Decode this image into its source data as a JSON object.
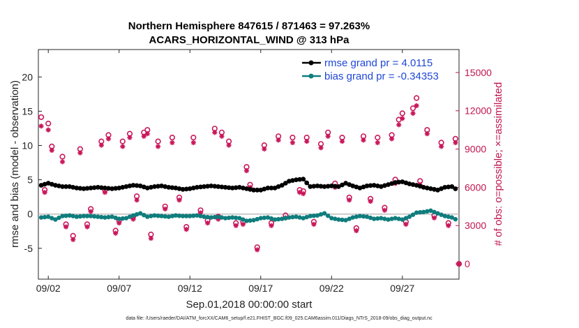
{
  "chart_data": {
    "type": "line",
    "title_line1": "Northern Hemisphere 847615 / 871463 = 97.263%",
    "title_line2": "ACARS_HORIZONTAL_WIND @ 313 hPa",
    "xlabel": "Sep.01,2018 00:00:00 start",
    "ylabel_left": "rmse and bias (model - observation)",
    "ylabel_right": "# of obs: o=possible; ×=assimilated",
    "x_tick_labels": [
      "09/02",
      "09/07",
      "09/12",
      "09/17",
      "09/22",
      "09/27"
    ],
    "x_tick_days": [
      2,
      7,
      12,
      17,
      22,
      27
    ],
    "xlim_days": [
      1.3,
      31.0
    ],
    "ylim_left": [
      -9.5,
      24
    ],
    "ylim_right": [
      -1200,
      16800
    ],
    "y_ticks_left": [
      "-5",
      "0",
      "5",
      "10",
      "15",
      "20"
    ],
    "y_ticks_right": [
      "0",
      "3000",
      "6000",
      "9000",
      "12000",
      "15000"
    ],
    "legend": {
      "position": "top-right",
      "rmse_label": "rmse grand pr = 4.0115",
      "bias_label": "bias grand pr = -0.34353"
    },
    "colors": {
      "rmse": "#000000",
      "bias": "#0f7d7d",
      "obs": "#c8175a",
      "zero_line": "#bdbdbd",
      "legend_text": "#1f47d6"
    },
    "series": [
      {
        "name": "rmse",
        "axis": "left",
        "start_day": 1.5,
        "step_days": 0.25,
        "anchors": [
          [
            1.5,
            4.2
          ],
          [
            2.0,
            4.5
          ],
          [
            2.5,
            4.2
          ],
          [
            3.0,
            4.0
          ],
          [
            3.5,
            4.0
          ],
          [
            4.0,
            3.8
          ],
          [
            4.5,
            3.7
          ],
          [
            5.0,
            3.8
          ],
          [
            5.5,
            3.9
          ],
          [
            6.0,
            3.8
          ],
          [
            6.5,
            3.7
          ],
          [
            7.0,
            3.8
          ],
          [
            7.5,
            4.0
          ],
          [
            8.0,
            4.2
          ],
          [
            8.5,
            4.1
          ],
          [
            9.0,
            3.8
          ],
          [
            9.5,
            4.0
          ],
          [
            10.0,
            4.1
          ],
          [
            10.5,
            3.9
          ],
          [
            11.0,
            3.8
          ],
          [
            11.5,
            3.6
          ],
          [
            12.0,
            3.7
          ],
          [
            12.5,
            3.9
          ],
          [
            13.0,
            4.0
          ],
          [
            13.5,
            4.1
          ],
          [
            14.0,
            4.0
          ],
          [
            14.5,
            3.9
          ],
          [
            15.0,
            3.8
          ],
          [
            15.5,
            3.9
          ],
          [
            16.0,
            3.7
          ],
          [
            16.5,
            3.5
          ],
          [
            17.0,
            3.5
          ],
          [
            17.5,
            3.8
          ],
          [
            18.0,
            3.8
          ],
          [
            18.5,
            4.2
          ],
          [
            19.0,
            4.8
          ],
          [
            19.5,
            5.0
          ],
          [
            20.0,
            5.1
          ],
          [
            20.5,
            4.0
          ],
          [
            21.0,
            4.1
          ],
          [
            21.5,
            4.0
          ],
          [
            22.0,
            4.1
          ],
          [
            22.5,
            4.0
          ],
          [
            23.0,
            4.5
          ],
          [
            23.5,
            4.1
          ],
          [
            24.0,
            3.8
          ],
          [
            24.5,
            4.1
          ],
          [
            25.0,
            4.2
          ],
          [
            25.5,
            4.0
          ],
          [
            26.0,
            4.3
          ],
          [
            26.5,
            4.6
          ],
          [
            27.0,
            4.7
          ],
          [
            27.5,
            4.4
          ],
          [
            28.0,
            4.2
          ],
          [
            28.5,
            3.9
          ],
          [
            29.0,
            3.7
          ],
          [
            29.5,
            3.5
          ],
          [
            30.0,
            3.9
          ],
          [
            30.5,
            4.0
          ],
          [
            30.9,
            3.5
          ]
        ]
      },
      {
        "name": "bias",
        "axis": "left",
        "start_day": 1.5,
        "step_days": 0.25,
        "anchors": [
          [
            1.5,
            -0.5
          ],
          [
            2.0,
            -0.4
          ],
          [
            2.5,
            -0.8
          ],
          [
            3.0,
            -0.3
          ],
          [
            3.5,
            -0.2
          ],
          [
            4.0,
            -0.4
          ],
          [
            4.5,
            -0.3
          ],
          [
            5.0,
            -0.3
          ],
          [
            5.5,
            -0.4
          ],
          [
            6.0,
            -0.5
          ],
          [
            6.5,
            -0.4
          ],
          [
            7.0,
            -0.7
          ],
          [
            7.5,
            -0.6
          ],
          [
            8.0,
            -0.2
          ],
          [
            8.5,
            0.1
          ],
          [
            9.0,
            -0.4
          ],
          [
            9.5,
            -0.2
          ],
          [
            10.0,
            -0.3
          ],
          [
            10.5,
            -0.4
          ],
          [
            11.0,
            -0.2
          ],
          [
            11.5,
            -0.3
          ],
          [
            12.0,
            -0.3
          ],
          [
            12.5,
            -0.2
          ],
          [
            13.0,
            -0.4
          ],
          [
            13.5,
            -0.5
          ],
          [
            14.0,
            -0.4
          ],
          [
            14.5,
            -0.6
          ],
          [
            15.0,
            -0.5
          ],
          [
            15.5,
            -0.6
          ],
          [
            16.0,
            -1.0
          ],
          [
            16.5,
            -0.9
          ],
          [
            17.0,
            -0.6
          ],
          [
            17.5,
            -0.5
          ],
          [
            18.0,
            -0.8
          ],
          [
            18.5,
            -0.7
          ],
          [
            19.0,
            -0.5
          ],
          [
            19.5,
            -0.4
          ],
          [
            20.0,
            -0.6
          ],
          [
            20.5,
            -0.3
          ],
          [
            21.0,
            -0.2
          ],
          [
            21.5,
            0.1
          ],
          [
            22.0,
            -0.6
          ],
          [
            22.5,
            -0.8
          ],
          [
            23.0,
            -0.9
          ],
          [
            23.5,
            -0.5
          ],
          [
            24.0,
            -0.3
          ],
          [
            24.5,
            -0.4
          ],
          [
            25.0,
            -0.7
          ],
          [
            25.5,
            -0.6
          ],
          [
            26.0,
            -0.8
          ],
          [
            26.5,
            -0.6
          ],
          [
            27.0,
            -0.8
          ],
          [
            27.5,
            -0.4
          ],
          [
            28.0,
            0.2
          ],
          [
            28.5,
            0.3
          ],
          [
            29.0,
            0.5
          ],
          [
            29.5,
            0.1
          ],
          [
            30.0,
            -0.3
          ],
          [
            30.5,
            -0.5
          ],
          [
            30.9,
            -0.9
          ]
        ]
      },
      {
        "name": "possible",
        "axis": "right",
        "marker": "o",
        "points": [
          [
            1.5,
            11500
          ],
          [
            2.0,
            11000
          ],
          [
            1.75,
            5800
          ],
          [
            2.25,
            9200
          ],
          [
            3.0,
            8400
          ],
          [
            3.25,
            3100
          ],
          [
            3.75,
            2200
          ],
          [
            4.25,
            9000
          ],
          [
            4.75,
            3100
          ],
          [
            5.0,
            4300
          ],
          [
            5.75,
            9600
          ],
          [
            6.0,
            5800
          ],
          [
            6.25,
            10100
          ],
          [
            6.75,
            2600
          ],
          [
            7.0,
            3400
          ],
          [
            7.25,
            9600
          ],
          [
            7.75,
            10200
          ],
          [
            8.0,
            3700
          ],
          [
            8.25,
            5300
          ],
          [
            8.75,
            10300
          ],
          [
            9.0,
            10500
          ],
          [
            9.25,
            2300
          ],
          [
            9.75,
            9600
          ],
          [
            10.25,
            4500
          ],
          [
            10.75,
            9900
          ],
          [
            11.25,
            5200
          ],
          [
            11.75,
            2900
          ],
          [
            12.25,
            9900
          ],
          [
            12.75,
            4200
          ],
          [
            13.25,
            3400
          ],
          [
            13.75,
            10600
          ],
          [
            14.0,
            3700
          ],
          [
            14.25,
            10300
          ],
          [
            14.75,
            9600
          ],
          [
            15.25,
            3200
          ],
          [
            15.75,
            3300
          ],
          [
            16.0,
            7600
          ],
          [
            16.25,
            6200
          ],
          [
            16.75,
            1300
          ],
          [
            17.25,
            9300
          ],
          [
            17.75,
            3200
          ],
          [
            18.25,
            10000
          ],
          [
            18.75,
            3800
          ],
          [
            19.25,
            9900
          ],
          [
            19.75,
            5800
          ],
          [
            20.0,
            5700
          ],
          [
            20.25,
            9900
          ],
          [
            20.75,
            3300
          ],
          [
            21.25,
            9400
          ],
          [
            21.75,
            10300
          ],
          [
            22.25,
            6300
          ],
          [
            22.75,
            9900
          ],
          [
            23.25,
            5200
          ],
          [
            23.75,
            2800
          ],
          [
            24.25,
            10000
          ],
          [
            24.75,
            5100
          ],
          [
            25.25,
            9900
          ],
          [
            25.75,
            4400
          ],
          [
            26.25,
            10100
          ],
          [
            26.5,
            6600
          ],
          [
            26.75,
            11300
          ],
          [
            27.0,
            11800
          ],
          [
            27.25,
            3300
          ],
          [
            27.75,
            12200
          ],
          [
            28.0,
            13000
          ],
          [
            28.25,
            6500
          ],
          [
            28.75,
            10500
          ],
          [
            29.25,
            3800
          ],
          [
            29.75,
            9500
          ],
          [
            30.25,
            3200
          ],
          [
            30.75,
            9800
          ],
          [
            31.0,
            0
          ]
        ]
      },
      {
        "name": "assimilated",
        "axis": "right",
        "marker": "x",
        "points": [
          [
            1.5,
            10800
          ],
          [
            2.0,
            10500
          ],
          [
            1.75,
            5600
          ],
          [
            2.25,
            8900
          ],
          [
            3.0,
            8000
          ],
          [
            3.25,
            2900
          ],
          [
            3.75,
            1900
          ],
          [
            4.25,
            8700
          ],
          [
            4.75,
            2900
          ],
          [
            5.0,
            4100
          ],
          [
            5.75,
            9300
          ],
          [
            6.0,
            5600
          ],
          [
            6.25,
            9800
          ],
          [
            6.75,
            2400
          ],
          [
            7.0,
            3200
          ],
          [
            7.25,
            9200
          ],
          [
            7.75,
            9900
          ],
          [
            8.0,
            3500
          ],
          [
            8.25,
            5000
          ],
          [
            8.75,
            10000
          ],
          [
            9.0,
            10200
          ],
          [
            9.25,
            2000
          ],
          [
            9.75,
            9200
          ],
          [
            10.25,
            4300
          ],
          [
            10.75,
            9500
          ],
          [
            11.25,
            5000
          ],
          [
            11.75,
            2700
          ],
          [
            12.25,
            9500
          ],
          [
            12.75,
            4000
          ],
          [
            13.25,
            3200
          ],
          [
            13.75,
            10300
          ],
          [
            14.0,
            3500
          ],
          [
            14.25,
            10000
          ],
          [
            14.75,
            9300
          ],
          [
            15.25,
            3000
          ],
          [
            15.75,
            3100
          ],
          [
            16.0,
            7300
          ],
          [
            16.25,
            6000
          ],
          [
            16.75,
            1100
          ],
          [
            17.25,
            9000
          ],
          [
            17.75,
            3000
          ],
          [
            18.25,
            9700
          ],
          [
            18.75,
            3600
          ],
          [
            19.25,
            9500
          ],
          [
            19.75,
            5600
          ],
          [
            20.0,
            5500
          ],
          [
            20.25,
            9600
          ],
          [
            20.75,
            3100
          ],
          [
            21.25,
            9100
          ],
          [
            21.75,
            10000
          ],
          [
            22.25,
            6000
          ],
          [
            22.75,
            9600
          ],
          [
            23.25,
            5000
          ],
          [
            23.75,
            2600
          ],
          [
            24.25,
            9700
          ],
          [
            24.75,
            4900
          ],
          [
            25.25,
            9500
          ],
          [
            25.75,
            4200
          ],
          [
            26.25,
            9800
          ],
          [
            26.5,
            6300
          ],
          [
            26.75,
            10900
          ],
          [
            27.0,
            11400
          ],
          [
            27.25,
            3100
          ],
          [
            27.75,
            11800
          ],
          [
            28.0,
            12400
          ],
          [
            28.25,
            6200
          ],
          [
            28.75,
            10200
          ],
          [
            29.25,
            3600
          ],
          [
            29.75,
            9200
          ],
          [
            30.25,
            3000
          ],
          [
            30.75,
            9500
          ],
          [
            31.0,
            0
          ]
        ]
      }
    ]
  },
  "footer": "data file: /Users/raeder/DAI/ATM_forcXX/CAM6_setup/f.e21.FHIST_BGC.f09_025.CAM6assim.011/Diags_NTrS_2018-09/obs_diag_output.nc"
}
